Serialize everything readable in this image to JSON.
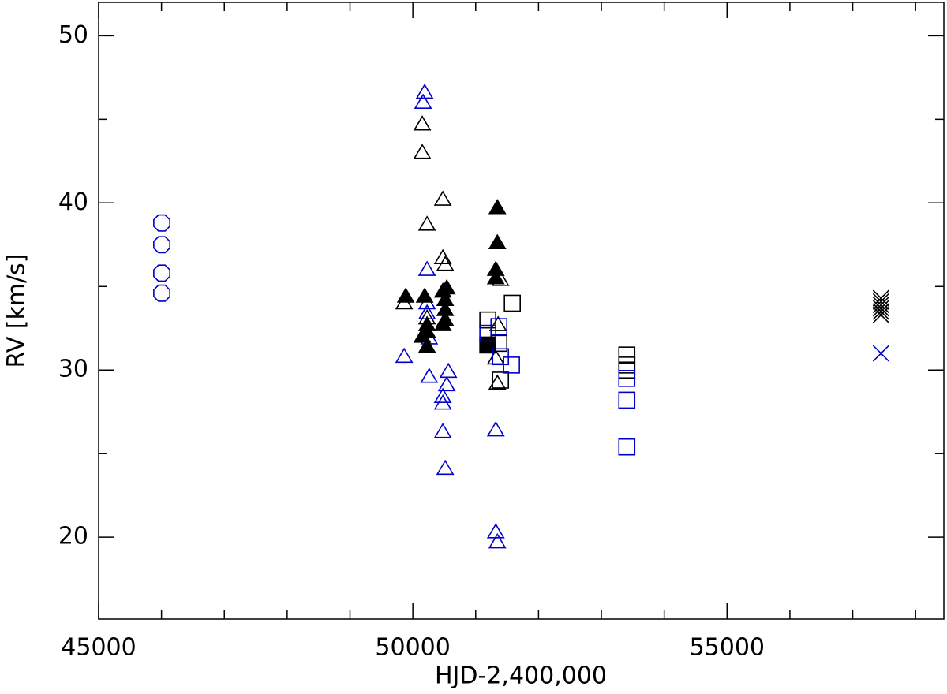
{
  "chart_data": {
    "type": "scatter",
    "x_label": "HJD-2,400,000",
    "y_label": "RV [km/s]",
    "xlim": [
      45000,
      58450
    ],
    "ylim": [
      15.1,
      52
    ],
    "xticks": [
      45000,
      50000,
      55000
    ],
    "yticks": [
      20,
      30,
      40,
      50
    ],
    "xminorticks": [
      46000,
      47000,
      48000,
      49000,
      51000,
      52000,
      53000,
      54000,
      56000,
      57000,
      58000
    ],
    "yminorticks": [
      25,
      35,
      45
    ],
    "series": [
      {
        "marker": "octagon",
        "filled": false,
        "color": "#0000cc",
        "x": [
          46005,
          46005,
          46005,
          46005
        ],
        "values": [
          38.8,
          37.5,
          35.8,
          34.6
        ]
      },
      {
        "marker": "triangle",
        "filled": false,
        "color": "#0000cc",
        "x": [
          50188,
          50163,
          49862,
          50226,
          50226,
          50226,
          50260,
          50565,
          50540,
          50477,
          50477,
          50477,
          50515,
          51320,
          51320,
          51345,
          50260
        ],
        "values": [
          46.6,
          46.0,
          30.8,
          36.0,
          34.0,
          33.4,
          29.6,
          29.9,
          29.1,
          28.4,
          28.0,
          26.3,
          24.1,
          26.4,
          20.3,
          19.7,
          31.9
        ]
      },
      {
        "marker": "triangle",
        "filled": false,
        "color": "#000000",
        "x": [
          50150,
          50150,
          50226,
          50477,
          50477,
          50515,
          49862,
          51357,
          51345,
          51320,
          51395,
          50226
        ],
        "values": [
          44.7,
          43.0,
          38.7,
          40.2,
          36.7,
          36.3,
          34.0,
          32.7,
          29.2,
          30.7,
          35.4,
          33.1
        ]
      },
      {
        "marker": "triangle",
        "filled": true,
        "color": "#000000",
        "x": [
          49887,
          50188,
          50226,
          50226,
          50226,
          50150,
          50477,
          50515,
          50540,
          50515,
          50515,
          50477,
          51345,
          51345,
          51320,
          51320
        ],
        "values": [
          34.4,
          34.4,
          32.7,
          32.3,
          31.4,
          32.0,
          34.7,
          34.2,
          34.9,
          33.6,
          33.0,
          32.7,
          39.7,
          37.6,
          36.0,
          35.5
        ]
      },
      {
        "marker": "square",
        "filled": false,
        "color": "#000000",
        "x": [
          51193,
          51583,
          51370,
          51395,
          53405,
          53405,
          53405
        ],
        "values": [
          33.0,
          34.0,
          31.6,
          29.4,
          30.9,
          30.3,
          30.0
        ]
      },
      {
        "marker": "square",
        "filled": true,
        "color": "#000000",
        "x": [
          51193
        ],
        "values": [
          31.5
        ]
      },
      {
        "marker": "square",
        "filled": false,
        "color": "#0000cc",
        "x": [
          51193,
          51370,
          51395,
          51570,
          53405,
          53405,
          53405
        ],
        "values": [
          32.2,
          32.6,
          30.8,
          30.3,
          29.5,
          28.2,
          25.4
        ]
      },
      {
        "marker": "cross",
        "filled": false,
        "color": "#000000",
        "x": [
          57450,
          57450,
          57450,
          57450,
          57450,
          57450
        ],
        "values": [
          33.3,
          33.5,
          33.7,
          33.9,
          34.1,
          34.3
        ]
      },
      {
        "marker": "cross",
        "filled": false,
        "color": "#0000cc",
        "x": [
          57450
        ],
        "values": [
          31.0
        ]
      }
    ]
  }
}
